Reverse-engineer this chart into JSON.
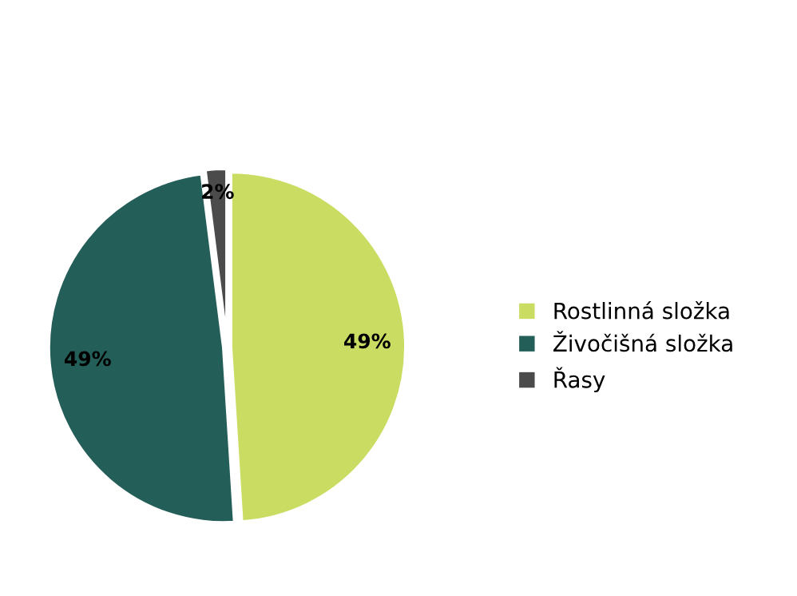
{
  "chart_data": {
    "type": "pie",
    "categories": [
      "Rostlinná složka",
      "Živočišná složka",
      "Řasy"
    ],
    "values": [
      49,
      49,
      2
    ],
    "colors": [
      "#cadc62",
      "#245e59",
      "#4b4b4b"
    ],
    "value_labels": [
      "49%",
      "49%",
      "2%"
    ],
    "legend": "right"
  }
}
